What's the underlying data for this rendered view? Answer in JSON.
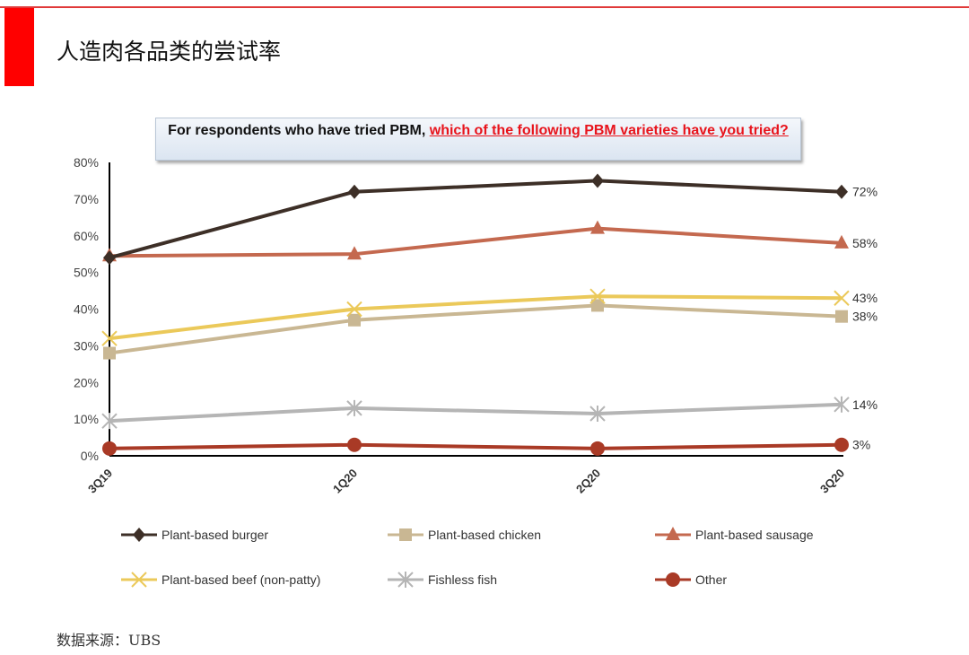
{
  "header": {
    "title": "人造肉各品类的尝试率"
  },
  "question": {
    "black": "For respondents who have tried PBM, ",
    "red": "which of the following PBM varieties have you tried?"
  },
  "source": "数据来源：UBS",
  "chart_data": {
    "type": "line",
    "categories": [
      "3Q19",
      "1Q20",
      "2Q20",
      "3Q20"
    ],
    "ylim": [
      0,
      80
    ],
    "yticks": [
      "0%",
      "10%",
      "20%",
      "30%",
      "40%",
      "50%",
      "60%",
      "70%",
      "80%"
    ],
    "grid": false,
    "legend": "bottom",
    "series": [
      {
        "name": "Plant-based burger",
        "values": [
          54,
          72,
          75,
          72
        ],
        "color": "#3d2f27",
        "marker": "diamond",
        "end_label": "72%"
      },
      {
        "name": "Plant-based chicken",
        "values": [
          28,
          37,
          41,
          38
        ],
        "color": "#c9b793",
        "marker": "square",
        "end_label": "38%"
      },
      {
        "name": "Plant-based sausage",
        "values": [
          54.5,
          55,
          62,
          58
        ],
        "color": "#c4694f",
        "marker": "triangle",
        "end_label": "58%"
      },
      {
        "name": "Plant-based beef (non-patty)",
        "values": [
          32,
          40,
          43.5,
          43
        ],
        "color": "#ebc95a",
        "marker": "x",
        "end_label": "43%"
      },
      {
        "name": "Fishless fish",
        "values": [
          9.5,
          13,
          11.5,
          14
        ],
        "color": "#b5b5b5",
        "marker": "star",
        "end_label": "14%"
      },
      {
        "name": "Other",
        "values": [
          2,
          3,
          2,
          3
        ],
        "color": "#a93a26",
        "marker": "circle",
        "end_label": "3%"
      }
    ]
  }
}
